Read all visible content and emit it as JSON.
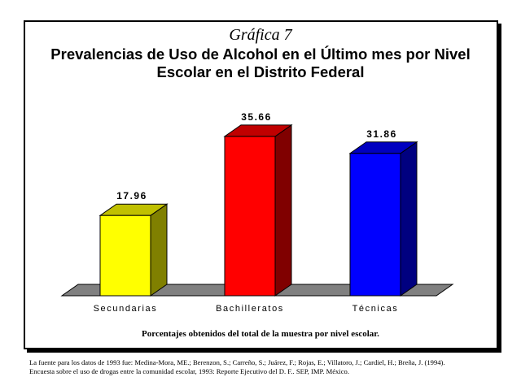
{
  "figure_label": "Gráfica 7",
  "colors": {
    "floor": "#808080",
    "frame": "#000000",
    "text": "#000000"
  },
  "chart_data": {
    "type": "bar",
    "title": "Prevalencias de Uso de Alcohol en el Último mes por Nivel Escolar en el Distrito Federal",
    "title_lines": [
      "Prevalencias de Uso de Alcohol en el Último mes por Nivel",
      "Escolar en el Distrito Federal"
    ],
    "categories": [
      "Secundarias",
      "Bachilleratos",
      "Técnicas"
    ],
    "values": [
      17.96,
      35.66,
      31.86
    ],
    "value_labels": [
      "17.96",
      "35.66",
      "31.86"
    ],
    "bar_colors": [
      {
        "front": "#ffff00",
        "side": "#808000",
        "top": "#c0c000"
      },
      {
        "front": "#ff0000",
        "side": "#800000",
        "top": "#c00000"
      },
      {
        "front": "#0000ff",
        "side": "#000080",
        "top": "#0000c0"
      }
    ],
    "ylim": [
      0,
      40
    ],
    "grid": false,
    "legend": "none",
    "xlabel": "",
    "ylabel": "",
    "note": "Porcentajes obtenidos del total de la muestra por nivel escolar."
  },
  "source": {
    "lines": [
      "La fuente para los datos de 1993 fue: Medina-Mora, ME.; Berenzon, S.; Carreño, S.; Juárez, F.; Rojas, E.; Villatoro, J.; Cardiel, H.; Breña, J. (1994).",
      "Encuesta sobre el uso de drogas entre la comunidad escolar, 1993: Reporte Ejecutivo del D. F.. SEP, IMP. México."
    ]
  }
}
